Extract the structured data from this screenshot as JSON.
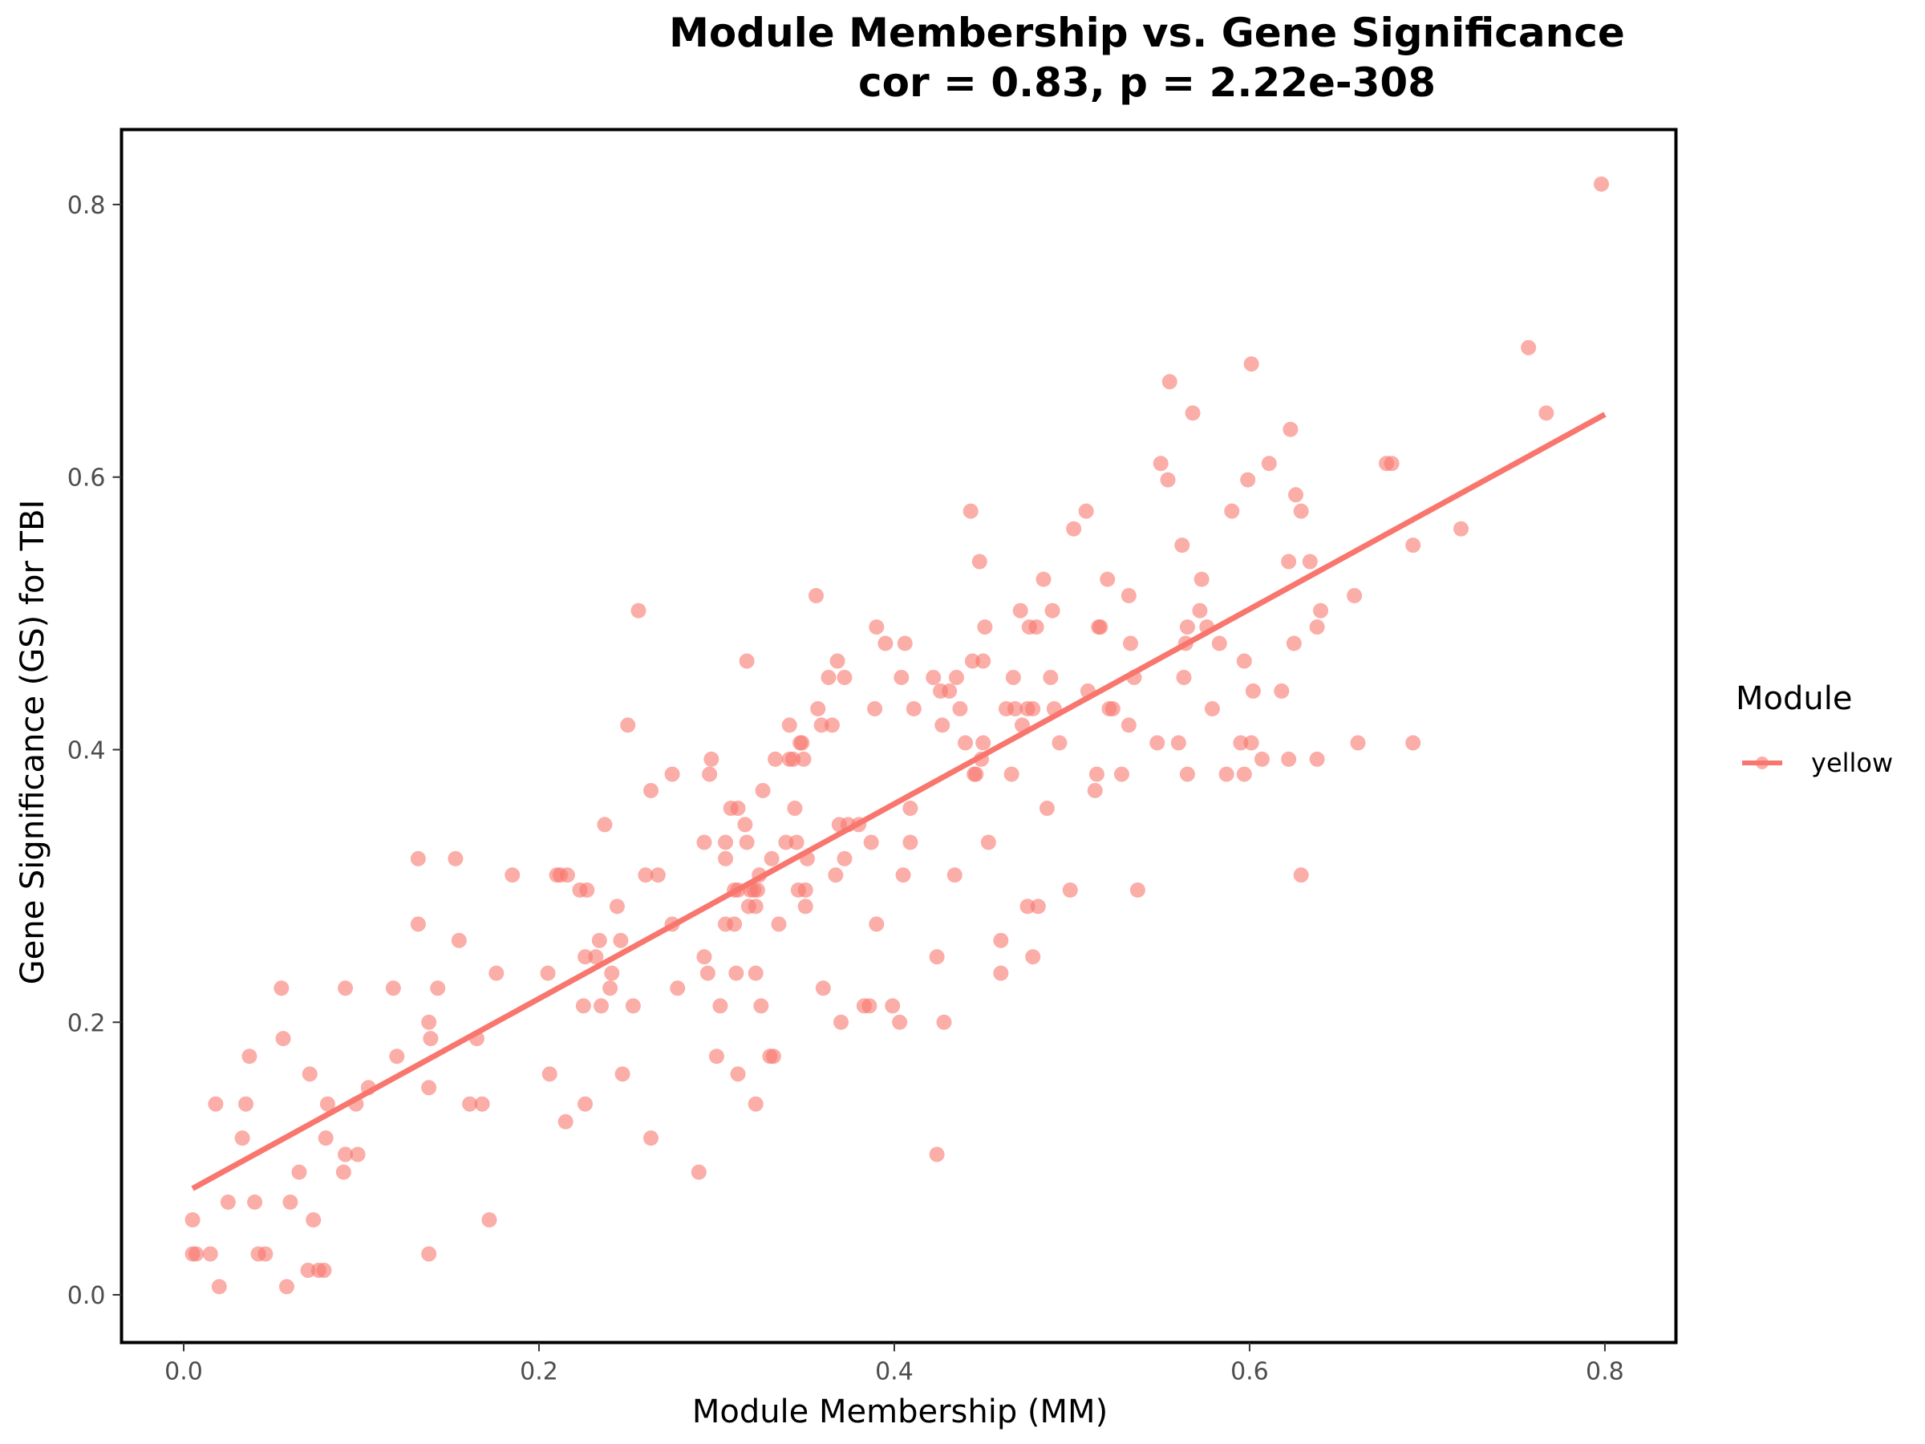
{
  "chart_data": {
    "type": "scatter",
    "title": "Module Membership vs. Gene Significance",
    "subtitle": "cor = 0.83, p = 2.22e-308",
    "xlabel": "Module Membership (MM)",
    "ylabel": "Gene Significance (GS) for TBI",
    "xlim": [
      -0.035,
      0.84
    ],
    "ylim": [
      -0.035,
      0.855
    ],
    "x_ticks": [
      0.0,
      0.2,
      0.4,
      0.6,
      0.8
    ],
    "x_tick_labels": [
      "0.0",
      "0.2",
      "0.4",
      "0.6",
      "0.8"
    ],
    "y_ticks": [
      0.0,
      0.2,
      0.4,
      0.6,
      0.8
    ],
    "y_tick_labels": [
      "0.0",
      "0.2",
      "0.4",
      "0.6",
      "0.8"
    ],
    "grid": false,
    "legend": {
      "title": "Module",
      "position": "right",
      "entries": [
        "yellow"
      ]
    },
    "color": "#F8766D",
    "fit_line": {
      "x": [
        0.005,
        0.8
      ],
      "y": [
        0.078,
        0.646
      ]
    },
    "series": [
      {
        "name": "yellow",
        "points": [
          [
            0.005,
            0.055
          ],
          [
            0.005,
            0.03
          ],
          [
            0.007,
            0.03
          ],
          [
            0.015,
            0.03
          ],
          [
            0.02,
            0.006
          ],
          [
            0.018,
            0.14
          ],
          [
            0.025,
            0.068
          ],
          [
            0.033,
            0.115
          ],
          [
            0.035,
            0.14
          ],
          [
            0.037,
            0.175
          ],
          [
            0.04,
            0.068
          ],
          [
            0.042,
            0.03
          ],
          [
            0.046,
            0.03
          ],
          [
            0.055,
            0.225
          ],
          [
            0.056,
            0.188
          ],
          [
            0.058,
            0.006
          ],
          [
            0.06,
            0.068
          ],
          [
            0.065,
            0.09
          ],
          [
            0.07,
            0.018
          ],
          [
            0.071,
            0.162
          ],
          [
            0.073,
            0.055
          ],
          [
            0.076,
            0.018
          ],
          [
            0.079,
            0.018
          ],
          [
            0.08,
            0.115
          ],
          [
            0.081,
            0.14
          ],
          [
            0.09,
            0.09
          ],
          [
            0.091,
            0.103
          ],
          [
            0.091,
            0.225
          ],
          [
            0.098,
            0.103
          ],
          [
            0.097,
            0.14
          ],
          [
            0.104,
            0.152
          ],
          [
            0.118,
            0.225
          ],
          [
            0.12,
            0.175
          ],
          [
            0.132,
            0.32
          ],
          [
            0.132,
            0.272
          ],
          [
            0.138,
            0.2
          ],
          [
            0.139,
            0.188
          ],
          [
            0.138,
            0.152
          ],
          [
            0.138,
            0.03
          ],
          [
            0.143,
            0.225
          ],
          [
            0.153,
            0.32
          ],
          [
            0.155,
            0.26
          ],
          [
            0.161,
            0.14
          ],
          [
            0.165,
            0.188
          ],
          [
            0.168,
            0.14
          ],
          [
            0.172,
            0.055
          ],
          [
            0.176,
            0.236
          ],
          [
            0.185,
            0.308
          ],
          [
            0.205,
            0.236
          ],
          [
            0.206,
            0.162
          ],
          [
            0.21,
            0.308
          ],
          [
            0.212,
            0.308
          ],
          [
            0.215,
            0.127
          ],
          [
            0.216,
            0.308
          ],
          [
            0.223,
            0.297
          ],
          [
            0.225,
            0.212
          ],
          [
            0.227,
            0.297
          ],
          [
            0.226,
            0.248
          ],
          [
            0.226,
            0.14
          ],
          [
            0.232,
            0.248
          ],
          [
            0.234,
            0.26
          ],
          [
            0.235,
            0.212
          ],
          [
            0.237,
            0.345
          ],
          [
            0.24,
            0.225
          ],
          [
            0.241,
            0.236
          ],
          [
            0.244,
            0.285
          ],
          [
            0.246,
            0.26
          ],
          [
            0.247,
            0.162
          ],
          [
            0.25,
            0.418
          ],
          [
            0.253,
            0.212
          ],
          [
            0.256,
            0.502
          ],
          [
            0.26,
            0.308
          ],
          [
            0.263,
            0.115
          ],
          [
            0.263,
            0.37
          ],
          [
            0.267,
            0.308
          ],
          [
            0.275,
            0.272
          ],
          [
            0.275,
            0.382
          ],
          [
            0.278,
            0.225
          ],
          [
            0.29,
            0.09
          ],
          [
            0.293,
            0.332
          ],
          [
            0.293,
            0.248
          ],
          [
            0.295,
            0.236
          ],
          [
            0.296,
            0.382
          ],
          [
            0.297,
            0.393
          ],
          [
            0.3,
            0.175
          ],
          [
            0.302,
            0.212
          ],
          [
            0.305,
            0.32
          ],
          [
            0.305,
            0.332
          ],
          [
            0.305,
            0.272
          ],
          [
            0.308,
            0.357
          ],
          [
            0.31,
            0.297
          ],
          [
            0.31,
            0.272
          ],
          [
            0.311,
            0.236
          ],
          [
            0.312,
            0.357
          ],
          [
            0.312,
            0.297
          ],
          [
            0.312,
            0.162
          ],
          [
            0.316,
            0.345
          ],
          [
            0.317,
            0.332
          ],
          [
            0.317,
            0.465
          ],
          [
            0.318,
            0.285
          ],
          [
            0.319,
            0.297
          ],
          [
            0.321,
            0.297
          ],
          [
            0.322,
            0.14
          ],
          [
            0.322,
            0.285
          ],
          [
            0.322,
            0.236
          ],
          [
            0.323,
            0.297
          ],
          [
            0.324,
            0.308
          ],
          [
            0.325,
            0.212
          ],
          [
            0.326,
            0.37
          ],
          [
            0.33,
            0.175
          ],
          [
            0.331,
            0.32
          ],
          [
            0.332,
            0.175
          ],
          [
            0.333,
            0.393
          ],
          [
            0.335,
            0.272
          ],
          [
            0.339,
            0.332
          ],
          [
            0.341,
            0.393
          ],
          [
            0.341,
            0.418
          ],
          [
            0.343,
            0.393
          ],
          [
            0.344,
            0.357
          ],
          [
            0.345,
            0.332
          ],
          [
            0.346,
            0.297
          ],
          [
            0.347,
            0.405
          ],
          [
            0.348,
            0.405
          ],
          [
            0.349,
            0.393
          ],
          [
            0.35,
            0.285
          ],
          [
            0.35,
            0.297
          ],
          [
            0.351,
            0.32
          ],
          [
            0.356,
            0.513
          ],
          [
            0.357,
            0.43
          ],
          [
            0.359,
            0.418
          ],
          [
            0.36,
            0.225
          ],
          [
            0.363,
            0.453
          ],
          [
            0.365,
            0.418
          ],
          [
            0.367,
            0.308
          ],
          [
            0.368,
            0.465
          ],
          [
            0.369,
            0.345
          ],
          [
            0.37,
            0.2
          ],
          [
            0.372,
            0.453
          ],
          [
            0.372,
            0.32
          ],
          [
            0.374,
            0.345
          ],
          [
            0.38,
            0.345
          ],
          [
            0.383,
            0.212
          ],
          [
            0.386,
            0.212
          ],
          [
            0.387,
            0.332
          ],
          [
            0.389,
            0.43
          ],
          [
            0.39,
            0.49
          ],
          [
            0.39,
            0.272
          ],
          [
            0.395,
            0.478
          ],
          [
            0.399,
            0.212
          ],
          [
            0.403,
            0.2
          ],
          [
            0.404,
            0.453
          ],
          [
            0.405,
            0.308
          ],
          [
            0.406,
            0.478
          ],
          [
            0.409,
            0.332
          ],
          [
            0.409,
            0.357
          ],
          [
            0.411,
            0.43
          ],
          [
            0.422,
            0.453
          ],
          [
            0.424,
            0.248
          ],
          [
            0.424,
            0.103
          ],
          [
            0.426,
            0.443
          ],
          [
            0.427,
            0.418
          ],
          [
            0.428,
            0.2
          ],
          [
            0.431,
            0.443
          ],
          [
            0.434,
            0.308
          ],
          [
            0.435,
            0.453
          ],
          [
            0.437,
            0.43
          ],
          [
            0.44,
            0.405
          ],
          [
            0.443,
            0.575
          ],
          [
            0.444,
            0.465
          ],
          [
            0.445,
            0.382
          ],
          [
            0.446,
            0.382
          ],
          [
            0.448,
            0.538
          ],
          [
            0.449,
            0.393
          ],
          [
            0.45,
            0.465
          ],
          [
            0.45,
            0.405
          ],
          [
            0.451,
            0.49
          ],
          [
            0.453,
            0.332
          ],
          [
            0.46,
            0.26
          ],
          [
            0.46,
            0.236
          ],
          [
            0.463,
            0.43
          ],
          [
            0.466,
            0.382
          ],
          [
            0.467,
            0.453
          ],
          [
            0.468,
            0.43
          ],
          [
            0.471,
            0.502
          ],
          [
            0.472,
            0.418
          ],
          [
            0.475,
            0.43
          ],
          [
            0.475,
            0.285
          ],
          [
            0.476,
            0.49
          ],
          [
            0.478,
            0.248
          ],
          [
            0.478,
            0.43
          ],
          [
            0.48,
            0.49
          ],
          [
            0.481,
            0.285
          ],
          [
            0.484,
            0.525
          ],
          [
            0.486,
            0.357
          ],
          [
            0.488,
            0.453
          ],
          [
            0.489,
            0.502
          ],
          [
            0.49,
            0.43
          ],
          [
            0.493,
            0.405
          ],
          [
            0.499,
            0.297
          ],
          [
            0.501,
            0.562
          ],
          [
            0.508,
            0.575
          ],
          [
            0.509,
            0.443
          ],
          [
            0.513,
            0.37
          ],
          [
            0.514,
            0.382
          ],
          [
            0.515,
            0.49
          ],
          [
            0.516,
            0.49
          ],
          [
            0.52,
            0.525
          ],
          [
            0.521,
            0.43
          ],
          [
            0.523,
            0.43
          ],
          [
            0.528,
            0.382
          ],
          [
            0.532,
            0.418
          ],
          [
            0.532,
            0.513
          ],
          [
            0.533,
            0.478
          ],
          [
            0.535,
            0.453
          ],
          [
            0.537,
            0.297
          ],
          [
            0.548,
            0.405
          ],
          [
            0.55,
            0.61
          ],
          [
            0.554,
            0.598
          ],
          [
            0.555,
            0.67
          ],
          [
            0.56,
            0.405
          ],
          [
            0.562,
            0.55
          ],
          [
            0.563,
            0.453
          ],
          [
            0.564,
            0.478
          ],
          [
            0.565,
            0.49
          ],
          [
            0.565,
            0.382
          ],
          [
            0.568,
            0.647
          ],
          [
            0.572,
            0.502
          ],
          [
            0.573,
            0.525
          ],
          [
            0.576,
            0.49
          ],
          [
            0.579,
            0.43
          ],
          [
            0.583,
            0.478
          ],
          [
            0.587,
            0.382
          ],
          [
            0.59,
            0.575
          ],
          [
            0.595,
            0.405
          ],
          [
            0.597,
            0.465
          ],
          [
            0.597,
            0.382
          ],
          [
            0.599,
            0.598
          ],
          [
            0.601,
            0.405
          ],
          [
            0.601,
            0.683
          ],
          [
            0.602,
            0.443
          ],
          [
            0.607,
            0.393
          ],
          [
            0.611,
            0.61
          ],
          [
            0.618,
            0.443
          ],
          [
            0.622,
            0.538
          ],
          [
            0.622,
            0.393
          ],
          [
            0.623,
            0.635
          ],
          [
            0.625,
            0.478
          ],
          [
            0.626,
            0.587
          ],
          [
            0.629,
            0.575
          ],
          [
            0.629,
            0.308
          ],
          [
            0.634,
            0.538
          ],
          [
            0.638,
            0.49
          ],
          [
            0.638,
            0.393
          ],
          [
            0.64,
            0.502
          ],
          [
            0.659,
            0.513
          ],
          [
            0.661,
            0.405
          ],
          [
            0.677,
            0.61
          ],
          [
            0.68,
            0.61
          ],
          [
            0.692,
            0.405
          ],
          [
            0.692,
            0.55
          ],
          [
            0.719,
            0.562
          ],
          [
            0.757,
            0.695
          ],
          [
            0.767,
            0.647
          ],
          [
            0.798,
            0.815
          ]
        ]
      }
    ]
  }
}
